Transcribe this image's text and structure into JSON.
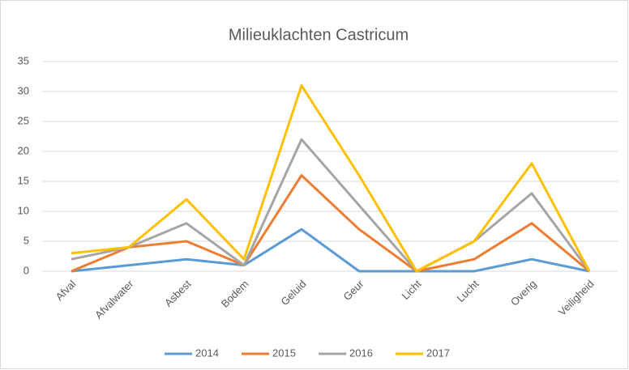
{
  "chart_data": {
    "type": "line",
    "title": "Milieuklachten Castricum",
    "categories": [
      "Afval",
      "Afvalwater",
      "Asbest",
      "Bodem",
      "Geluid",
      "Geur",
      "Licht",
      "Lucht",
      "Overig",
      "Veiligheid"
    ],
    "series": [
      {
        "name": "2014",
        "color": "#5b9bd5",
        "values": [
          0,
          1,
          2,
          1,
          7,
          0,
          0,
          0,
          2,
          0
        ]
      },
      {
        "name": "2015",
        "color": "#ed7d31",
        "values": [
          0,
          4,
          5,
          1,
          16,
          7,
          0,
          2,
          8,
          0
        ]
      },
      {
        "name": "2016",
        "color": "#a5a5a5",
        "values": [
          2,
          4,
          8,
          1,
          22,
          11,
          0,
          5,
          13,
          0
        ]
      },
      {
        "name": "2017",
        "color": "#ffc000",
        "values": [
          3,
          4,
          12,
          2,
          31,
          16,
          0,
          5,
          18,
          0
        ]
      }
    ],
    "ylim": [
      0,
      35
    ],
    "yticks": [
      0,
      5,
      10,
      15,
      20,
      25,
      30,
      35
    ],
    "grid": true,
    "legend": "bottom"
  }
}
